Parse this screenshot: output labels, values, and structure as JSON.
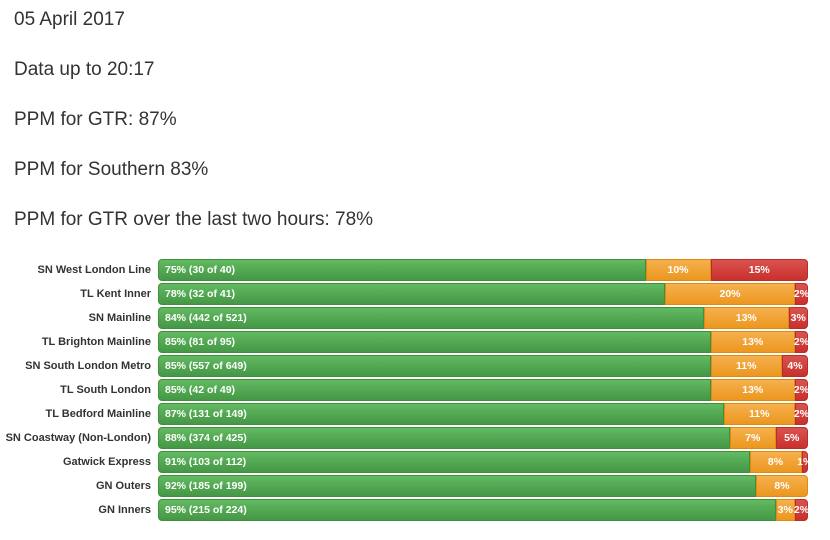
{
  "header": {
    "date": "05 April 2017",
    "data_up_to": "Data up to 20:17",
    "ppm_gtr": "PPM for GTR: 87%",
    "ppm_southern": "PPM for Southern 83%",
    "ppm_gtr_last_two_hours": "PPM for GTR over the last two hours: 78%"
  },
  "chart_data": {
    "type": "bar",
    "orientation": "horizontal",
    "stacked": true,
    "unit": "percent",
    "x_range": [
      0,
      100
    ],
    "grid": false,
    "legend": false,
    "colors": {
      "green": "#5cb85c",
      "orange": "#f0ad4e",
      "red": "#d9534f"
    },
    "rows": [
      {
        "label": "SN West London Line",
        "segments": [
          {
            "color": "green",
            "value": 75,
            "text": "75% (30 of 40)"
          },
          {
            "color": "orange",
            "value": 10,
            "text": "10%"
          },
          {
            "color": "red",
            "value": 15,
            "text": "15%"
          }
        ]
      },
      {
        "label": "TL Kent Inner",
        "segments": [
          {
            "color": "green",
            "value": 78,
            "text": "78% (32 of 41)"
          },
          {
            "color": "orange",
            "value": 20,
            "text": "20%"
          },
          {
            "color": "red",
            "value": 2,
            "text": "2%"
          }
        ]
      },
      {
        "label": "SN Mainline",
        "segments": [
          {
            "color": "green",
            "value": 84,
            "text": "84% (442 of 521)"
          },
          {
            "color": "orange",
            "value": 13,
            "text": "13%"
          },
          {
            "color": "red",
            "value": 3,
            "text": "3%"
          }
        ]
      },
      {
        "label": "TL Brighton Mainline",
        "segments": [
          {
            "color": "green",
            "value": 85,
            "text": "85% (81 of 95)"
          },
          {
            "color": "orange",
            "value": 13,
            "text": "13%"
          },
          {
            "color": "red",
            "value": 2,
            "text": "2%"
          }
        ]
      },
      {
        "label": "SN South London Metro",
        "segments": [
          {
            "color": "green",
            "value": 85,
            "text": "85% (557 of 649)"
          },
          {
            "color": "orange",
            "value": 11,
            "text": "11%"
          },
          {
            "color": "red",
            "value": 4,
            "text": "4%"
          }
        ]
      },
      {
        "label": "TL South London",
        "segments": [
          {
            "color": "green",
            "value": 85,
            "text": "85% (42 of 49)"
          },
          {
            "color": "orange",
            "value": 13,
            "text": "13%"
          },
          {
            "color": "red",
            "value": 2,
            "text": "2%"
          }
        ]
      },
      {
        "label": "TL Bedford Mainline",
        "segments": [
          {
            "color": "green",
            "value": 87,
            "text": "87% (131 of 149)"
          },
          {
            "color": "orange",
            "value": 11,
            "text": "11%"
          },
          {
            "color": "red",
            "value": 2,
            "text": "2%"
          }
        ]
      },
      {
        "label": "SN Coastway (Non-London)",
        "segments": [
          {
            "color": "green",
            "value": 88,
            "text": "88% (374 of 425)"
          },
          {
            "color": "orange",
            "value": 7,
            "text": "7%"
          },
          {
            "color": "red",
            "value": 5,
            "text": "5%"
          }
        ]
      },
      {
        "label": "Gatwick Express",
        "segments": [
          {
            "color": "green",
            "value": 91,
            "text": "91% (103 of 112)"
          },
          {
            "color": "orange",
            "value": 8,
            "text": "8%"
          },
          {
            "color": "red",
            "value": 1,
            "text": "1%"
          }
        ]
      },
      {
        "label": "GN Outers",
        "segments": [
          {
            "color": "green",
            "value": 92,
            "text": "92% (185 of 199)"
          },
          {
            "color": "orange",
            "value": 8,
            "text": "8%"
          }
        ]
      },
      {
        "label": "GN Inners",
        "segments": [
          {
            "color": "green",
            "value": 95,
            "text": "95% (215 of 224)"
          },
          {
            "color": "orange",
            "value": 3,
            "text": "3%"
          },
          {
            "color": "red",
            "value": 2,
            "text": "2%"
          }
        ]
      }
    ]
  }
}
